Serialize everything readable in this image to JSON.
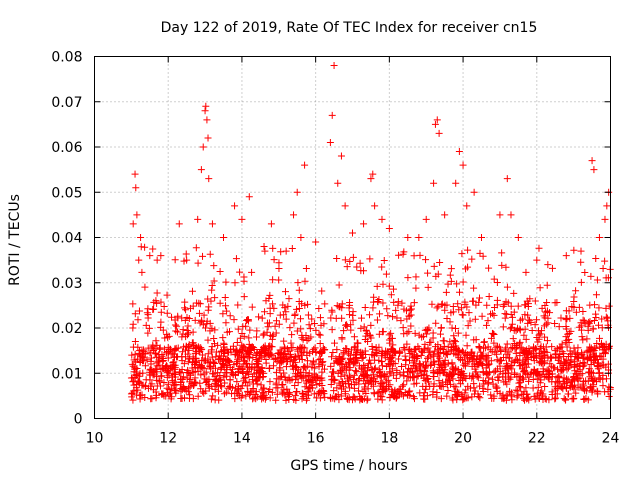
{
  "chart_data": {
    "type": "scatter",
    "title": "Day 122 of 2019, Rate Of TEC Index for receiver cn15",
    "xlabel": "GPS time / hours",
    "ylabel": "ROTI / TECUs",
    "xlim": [
      10,
      24
    ],
    "ylim": [
      0,
      0.08
    ],
    "xticks": [
      10,
      12,
      14,
      16,
      18,
      20,
      22,
      24
    ],
    "yticks": [
      0,
      0.01,
      0.02,
      0.03,
      0.04,
      0.05,
      0.06,
      0.07,
      0.08
    ],
    "ytick_labels": [
      "0",
      "0.01",
      "0.02",
      "0.03",
      "0.04",
      "0.05",
      "0.06",
      "0.07",
      "0.08"
    ],
    "grid": true,
    "marker": "+",
    "color": "#ff0000",
    "data_start_hour": 11.0,
    "data_end_hour": 24.0,
    "series": [
      {
        "name": "ROTI",
        "points": [
          [
            11.05,
            0.043
          ],
          [
            11.1,
            0.054
          ],
          [
            11.12,
            0.051
          ],
          [
            11.15,
            0.045
          ],
          [
            11.2,
            0.035
          ],
          [
            11.25,
            0.04
          ],
          [
            11.5,
            0.036
          ],
          [
            11.7,
            0.035
          ],
          [
            11.8,
            0.036
          ],
          [
            12.3,
            0.043
          ],
          [
            12.5,
            0.035
          ],
          [
            12.8,
            0.044
          ],
          [
            12.9,
            0.055
          ],
          [
            12.95,
            0.06
          ],
          [
            13.0,
            0.068
          ],
          [
            13.02,
            0.069
          ],
          [
            13.05,
            0.066
          ],
          [
            13.08,
            0.062
          ],
          [
            13.1,
            0.053
          ],
          [
            13.2,
            0.043
          ],
          [
            13.5,
            0.04
          ],
          [
            13.8,
            0.047
          ],
          [
            14.0,
            0.044
          ],
          [
            14.2,
            0.049
          ],
          [
            14.6,
            0.038
          ],
          [
            14.8,
            0.043
          ],
          [
            15.2,
            0.037
          ],
          [
            15.4,
            0.045
          ],
          [
            15.5,
            0.05
          ],
          [
            15.6,
            0.04
          ],
          [
            15.7,
            0.056
          ],
          [
            16.0,
            0.039
          ],
          [
            16.4,
            0.061
          ],
          [
            16.45,
            0.067
          ],
          [
            16.5,
            0.078
          ],
          [
            16.6,
            0.052
          ],
          [
            16.7,
            0.058
          ],
          [
            16.8,
            0.047
          ],
          [
            17.0,
            0.041
          ],
          [
            17.3,
            0.043
          ],
          [
            17.5,
            0.053
          ],
          [
            17.55,
            0.054
          ],
          [
            17.6,
            0.047
          ],
          [
            17.8,
            0.044
          ],
          [
            18.0,
            0.042
          ],
          [
            18.5,
            0.04
          ],
          [
            18.8,
            0.04
          ],
          [
            19.0,
            0.044
          ],
          [
            19.2,
            0.052
          ],
          [
            19.25,
            0.065
          ],
          [
            19.3,
            0.066
          ],
          [
            19.35,
            0.063
          ],
          [
            19.5,
            0.045
          ],
          [
            19.8,
            0.052
          ],
          [
            19.9,
            0.059
          ],
          [
            20.0,
            0.056
          ],
          [
            20.1,
            0.047
          ],
          [
            20.3,
            0.05
          ],
          [
            20.5,
            0.04
          ],
          [
            21.0,
            0.045
          ],
          [
            21.2,
            0.053
          ],
          [
            21.3,
            0.045
          ],
          [
            21.5,
            0.04
          ],
          [
            22.0,
            0.035
          ],
          [
            22.3,
            0.034
          ],
          [
            22.8,
            0.036
          ],
          [
            23.2,
            0.037
          ],
          [
            23.5,
            0.057
          ],
          [
            23.55,
            0.055
          ],
          [
            23.7,
            0.04
          ],
          [
            23.85,
            0.044
          ],
          [
            23.9,
            0.047
          ],
          [
            23.95,
            0.05
          ]
        ]
      }
    ]
  }
}
